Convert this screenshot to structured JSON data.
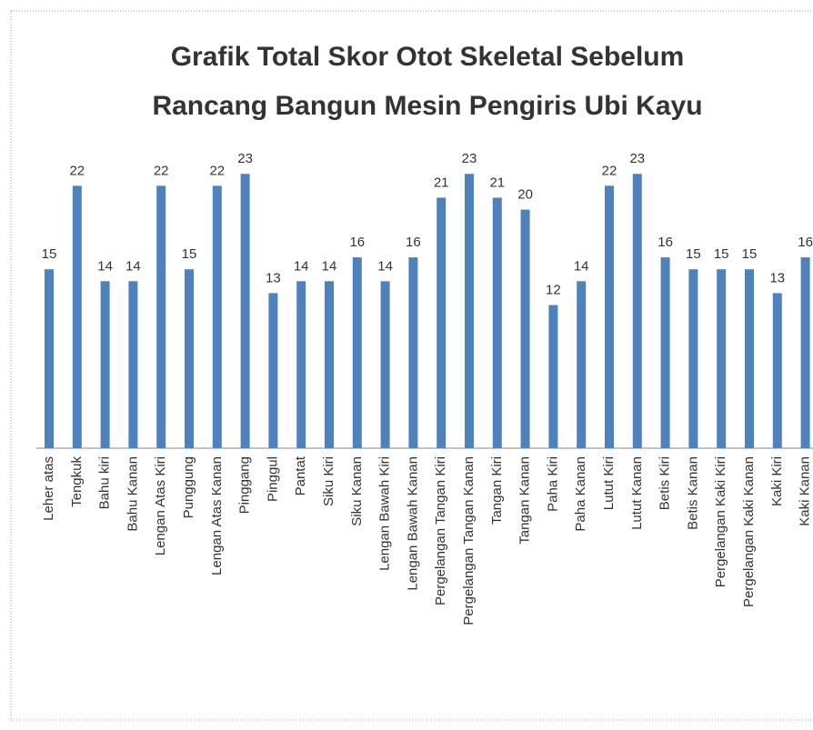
{
  "chart_data": {
    "type": "bar",
    "title": [
      "Grafik Total Skor Otot Skeletal Sebelum",
      "Rancang Bangun Mesin Pengiris Ubi Kayu"
    ],
    "categories": [
      "Leher atas",
      "Tengkuk",
      "Bahu kiri",
      "Bahu Kanan",
      "Lengan Atas Kiri",
      "Punggung",
      "Lengan Atas Kanan",
      "Pinggang",
      "Pinggul",
      "Pantat",
      "Siku Kiri",
      "Siku Kanan",
      "Lengan Bawah Kiri",
      "Lengan Bawah Kanan",
      "Pergelangan Tangan Kiri",
      "Pergelangan Tangan Kanan",
      "Tangan Kiri",
      "Tangan Kanan",
      "Paha Kiri",
      "Paha Kanan",
      "Lutut Kiri",
      "Lutut Kanan",
      "Betis Kiri",
      "Betis Kanan",
      "Pergelangan Kaki Kiri",
      "Pergelangan Kaki Kanan",
      "Kaki Kiri",
      "Kaki Kanan"
    ],
    "values": [
      15,
      22,
      14,
      14,
      22,
      15,
      22,
      23,
      13,
      14,
      14,
      16,
      14,
      16,
      21,
      23,
      21,
      20,
      12,
      14,
      22,
      23,
      16,
      15,
      15,
      15,
      13,
      16
    ],
    "color": "#4f81bd",
    "ylim": [
      0,
      25
    ]
  }
}
